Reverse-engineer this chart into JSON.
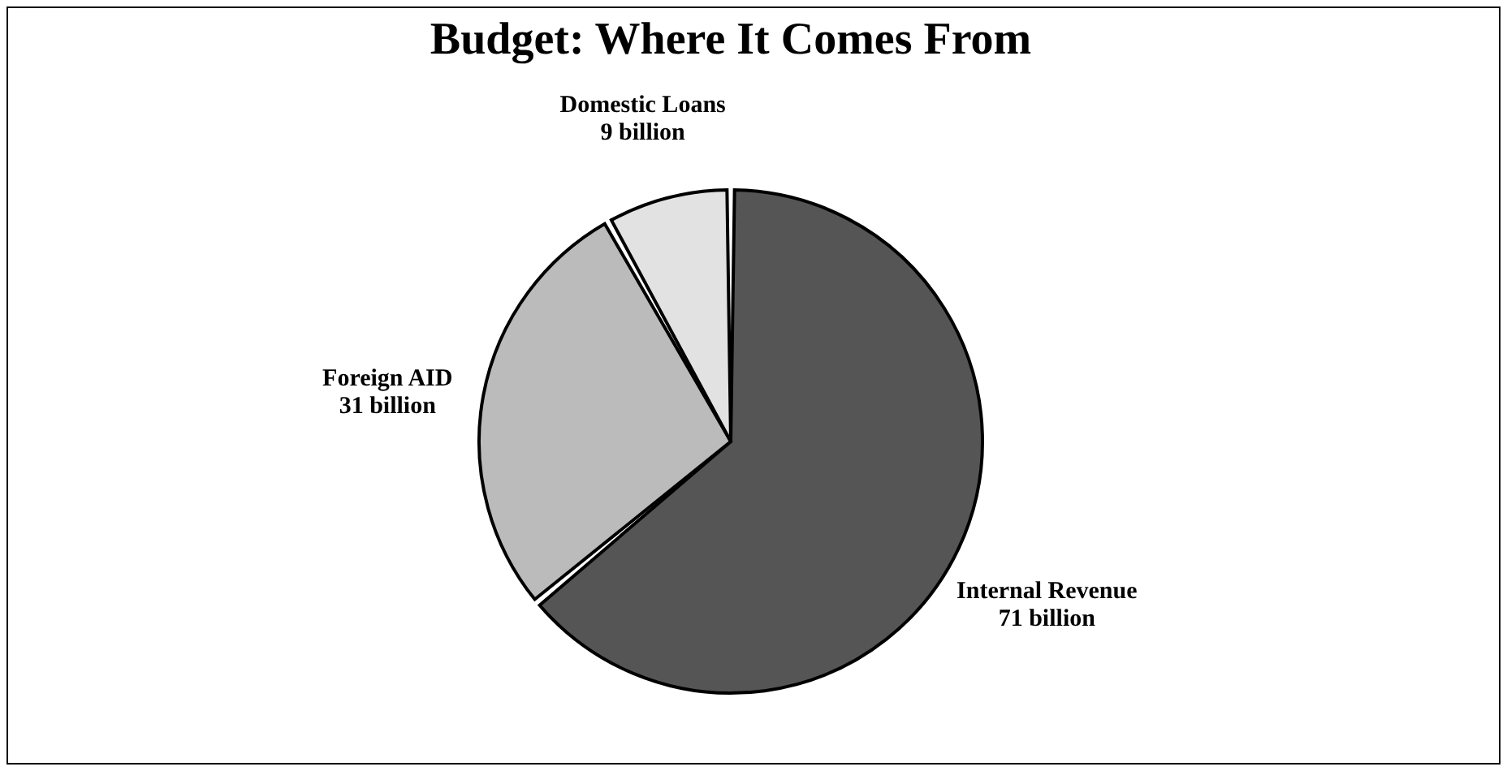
{
  "chart_data": {
    "type": "pie",
    "title": "Budget: Where It Comes From",
    "categories": [
      "Internal Revenue",
      "Foreign AID",
      "Domestic Loans"
    ],
    "values": [
      71,
      31,
      9
    ],
    "value_labels": [
      "71 billion",
      "31 billion",
      "9 billion"
    ],
    "colors": [
      "#555555",
      "#bbbbbb",
      "#e2e2e2"
    ],
    "legend": false
  }
}
